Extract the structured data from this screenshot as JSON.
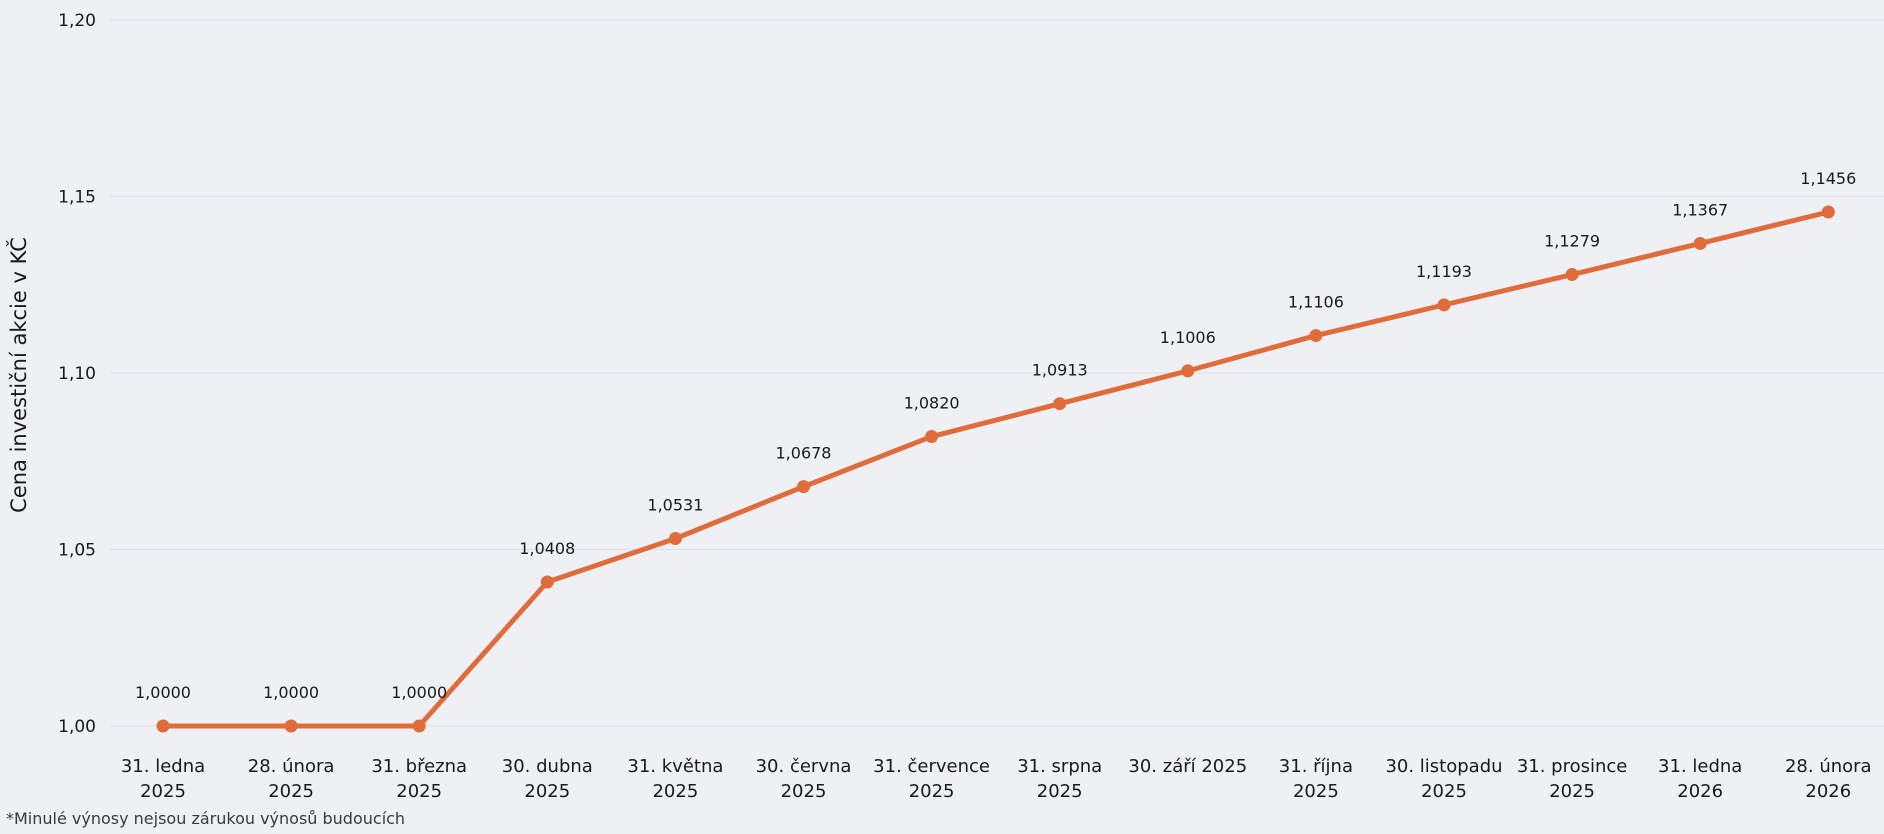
{
  "chart_data": {
    "type": "line",
    "ylabel": "Cena investiční akcie v KČ",
    "ylim": [
      1.0,
      1.2
    ],
    "yticks": [
      "1,00",
      "1,05",
      "1,10",
      "1,15",
      "1,20"
    ],
    "ytick_values": [
      1.0,
      1.05,
      1.1,
      1.15,
      1.2
    ],
    "grid": true,
    "categories": [
      [
        "31. ledna",
        "2025"
      ],
      [
        "28. února",
        "2025"
      ],
      [
        "31. března",
        "2025"
      ],
      [
        "30. dubna",
        "2025"
      ],
      [
        "31. května",
        "2025"
      ],
      [
        "30. června",
        "2025"
      ],
      [
        "31. července",
        "2025"
      ],
      [
        "31. srpna",
        "2025"
      ],
      [
        "30. září 2025"
      ],
      [
        "31. října",
        "2025"
      ],
      [
        "30. listopadu",
        "2025"
      ],
      [
        "31. prosince",
        "2025"
      ],
      [
        "31. ledna",
        "2026"
      ],
      [
        "28. února",
        "2026"
      ]
    ],
    "values": [
      1.0,
      1.0,
      1.0,
      1.0408,
      1.0531,
      1.0678,
      1.082,
      1.0913,
      1.1006,
      1.1106,
      1.1193,
      1.1279,
      1.1367,
      1.1456
    ],
    "data_labels": [
      "1,0000",
      "1,0000",
      "1,0000",
      "1,0408",
      "1,0531",
      "1,0678",
      "1,0820",
      "1,0913",
      "1,1006",
      "1,1106",
      "1,1193",
      "1,1279",
      "1,1367",
      "1,1456"
    ],
    "line_color": "#e06c3c"
  },
  "footnote": "*Minulé výnosy nejsou zárukou výnosů budoucích"
}
